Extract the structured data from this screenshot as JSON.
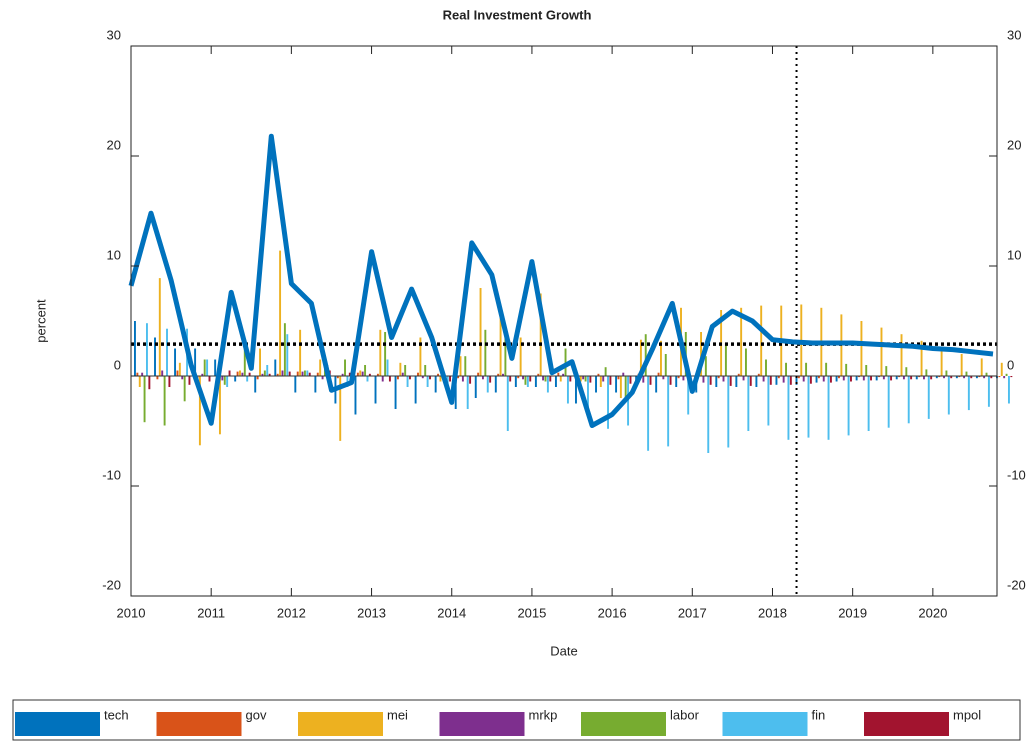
{
  "chart_data": {
    "type": "bar",
    "title": "Real Investment Growth",
    "xlabel": "Date",
    "ylabel": "percent",
    "x": [
      2010,
      2010.25,
      2010.5,
      2010.75,
      2011,
      2011.25,
      2011.5,
      2011.75,
      2012,
      2012.25,
      2012.5,
      2012.75,
      2013,
      2013.25,
      2013.5,
      2013.75,
      2014,
      2014.25,
      2014.5,
      2014.75,
      2015,
      2015.25,
      2015.5,
      2015.75,
      2016,
      2016.25,
      2016.5,
      2016.75,
      2017,
      2017.25,
      2017.5,
      2017.75,
      2018,
      2018.25,
      2018.5,
      2018.75,
      2019,
      2019.25,
      2019.5,
      2019.75,
      2020,
      2020.25,
      2020.5,
      2020.75
    ],
    "xlim": [
      2010,
      2020.8
    ],
    "xticks": [
      2010,
      2011,
      2012,
      2013,
      2014,
      2015,
      2016,
      2017,
      2018,
      2019,
      2020
    ],
    "ylim": [
      -20,
      30
    ],
    "yticks": [
      -20,
      -10,
      0,
      10,
      20,
      30
    ],
    "series": [
      {
        "name": "tech",
        "color": "#0072bd",
        "values": [
          5,
          3.5,
          2.5,
          2.5,
          1.5,
          -0.5,
          -1.5,
          1.5,
          -1.5,
          -1.5,
          -2.5,
          -3.5,
          -2.5,
          -3,
          -2.5,
          -1.5,
          -3,
          -2,
          -1.5,
          -1,
          -1,
          -1,
          -2.5,
          -1.5,
          -1.5,
          -1,
          -1.5,
          -1,
          -1.5,
          -1,
          -1,
          -1,
          -0.8,
          -0.8,
          -0.6,
          -0.5,
          -0.4,
          -0.4,
          -0.3,
          -0.3,
          -0.2,
          -0.2,
          -0.2,
          -0.2
        ]
      },
      {
        "name": "gov",
        "color": "#d95319",
        "values": [
          0.3,
          -0.3,
          0.5,
          -0.4,
          0.3,
          0.4,
          -0.3,
          0.2,
          0.4,
          0.3,
          -0.2,
          0.3,
          0.2,
          -0.3,
          0.3,
          0.2,
          -0.2,
          0.3,
          0.2,
          -0.2,
          0.2,
          0.3,
          -0.2,
          0.2,
          -0.3,
          0.2,
          0.3,
          -0.2,
          0.2,
          -0.2,
          0.2,
          0.2,
          -0.2,
          -0.2,
          -0.2,
          -0.2,
          -0.1,
          -0.1,
          -0.1,
          -0.1,
          -0.1,
          -0.1,
          -0.1,
          -0.1
        ]
      },
      {
        "name": "mei",
        "color": "#edb120",
        "values": [
          -1,
          8.9,
          1.2,
          -6.3,
          -5.3,
          0.5,
          2.5,
          11.4,
          4.2,
          1.5,
          -5.9,
          0.5,
          4.2,
          1.2,
          3.5,
          -0.5,
          1.8,
          8,
          6,
          3.5,
          7.5,
          -0.5,
          -0.5,
          -1,
          -2,
          3.3,
          3.2,
          6.2,
          4,
          6,
          6.2,
          6.4,
          6.4,
          6.5,
          6.2,
          5.6,
          5,
          4.4,
          3.8,
          3.2,
          2.6,
          2,
          1.6,
          1.2
        ]
      },
      {
        "name": "mrkp",
        "color": "#7e2f8e",
        "values": [
          0.3,
          0.5,
          -0.3,
          0.2,
          -0.4,
          0.3,
          0.2,
          0.5,
          0.4,
          -0.3,
          0.2,
          0.4,
          -0.5,
          0.3,
          -0.2,
          0.2,
          -0.5,
          -0.3,
          0.2,
          -0.3,
          -0.4,
          0.2,
          -0.3,
          -0.5,
          0.3,
          -0.6,
          -0.3,
          -0.4,
          -0.6,
          -0.5,
          -0.4,
          -0.5,
          -0.6,
          -0.5,
          -0.5,
          -0.4,
          -0.4,
          -0.3,
          -0.3,
          -0.3,
          -0.2,
          -0.2,
          -0.2,
          -0.2
        ]
      },
      {
        "name": "labor",
        "color": "#77ac30",
        "values": [
          -4.2,
          -4.5,
          -2.3,
          1.5,
          -0.8,
          2.5,
          0.5,
          4.8,
          0.5,
          1,
          1.5,
          1,
          4,
          1,
          1,
          -0.5,
          1.8,
          4.2,
          3.5,
          -0.8,
          -0.5,
          2.5,
          -0.5,
          0.8,
          -2,
          3.8,
          2,
          4,
          1.8,
          3,
          2.5,
          1.5,
          1.2,
          1.2,
          1.2,
          1.1,
          1,
          0.9,
          0.8,
          0.6,
          0.5,
          0.4,
          0.3,
          0.2
        ]
      },
      {
        "name": "fin",
        "color": "#4dbeee",
        "values": [
          4.8,
          4.3,
          4.3,
          1.5,
          -1,
          -0.5,
          1,
          3.8,
          0.5,
          1,
          -1,
          -0.5,
          1.5,
          -1,
          -1,
          -1,
          -3,
          -1.5,
          -5,
          -1,
          -1.5,
          -2.5,
          -3,
          -4.8,
          -4.5,
          -6.8,
          -6.4,
          -3.5,
          -7,
          -6.5,
          -5,
          -4.5,
          -5.8,
          -5.6,
          -5.8,
          -5.4,
          -5,
          -4.7,
          -4.3,
          -3.9,
          -3.5,
          -3.1,
          -2.8,
          -2.5
        ]
      },
      {
        "name": "mpol",
        "color": "#a2142f",
        "values": [
          -1.2,
          -1,
          -0.8,
          -0.5,
          0.5,
          0.3,
          0.2,
          0.4,
          0.3,
          0.5,
          0.3,
          0.2,
          -0.5,
          -0.3,
          -0.3,
          -0.5,
          -0.7,
          -0.6,
          -0.5,
          -0.5,
          -0.5,
          -0.5,
          -0.6,
          -0.8,
          -0.7,
          -0.8,
          -0.8,
          -0.8,
          -0.8,
          -0.9,
          -0.9,
          -0.8,
          -0.8,
          -0.7,
          -0.6,
          -0.5,
          -0.4,
          -0.4,
          -0.3,
          -0.3,
          -0.2,
          -0.2,
          -0.2,
          -0.1
        ]
      }
    ],
    "line": {
      "color": "#0072bd",
      "values": [
        8.2,
        14.8,
        8.7,
        1.0,
        -4.3,
        7.6,
        0.7,
        21.8,
        8.4,
        6.6,
        -1.3,
        -0.6,
        11.3,
        3.5,
        7.9,
        3.5,
        -2.4,
        12.1,
        9.2,
        1.6,
        10.4,
        0.3,
        1.3,
        -4.5,
        -3.5,
        -1.5,
        2.4,
        6.6,
        -1.4,
        4.5,
        5.9,
        5.0,
        3.3,
        3.1,
        3.0,
        3.0,
        3.0,
        2.9,
        2.8,
        2.7,
        2.5,
        2.4,
        2.2,
        2.0
      ]
    },
    "hline": 2.9,
    "vline": 2018.3,
    "legend": "bottom"
  }
}
